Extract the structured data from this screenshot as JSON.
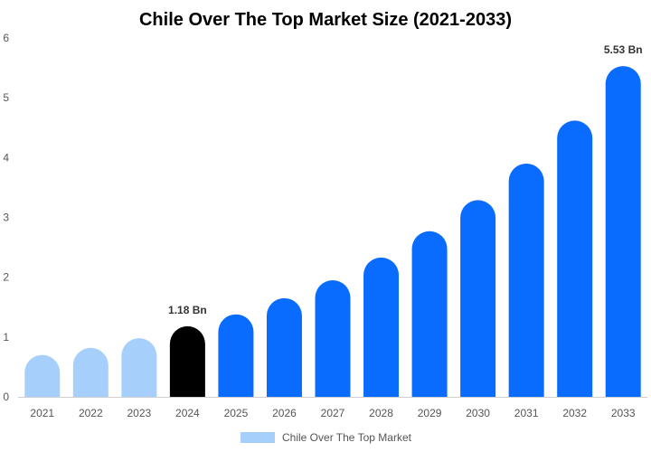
{
  "chart_data": {
    "type": "bar",
    "title": "Chile Over The Top Market Size (2021-2033)",
    "categories": [
      "2021",
      "2022",
      "2023",
      "2024",
      "2025",
      "2026",
      "2027",
      "2028",
      "2029",
      "2030",
      "2031",
      "2032",
      "2033"
    ],
    "series": [
      {
        "name": "Chile Over The Top Market",
        "values": [
          0.7,
          0.82,
          0.98,
          1.18,
          1.38,
          1.65,
          1.95,
          2.33,
          2.77,
          3.29,
          3.9,
          4.62,
          5.53
        ]
      }
    ],
    "data_labels": [
      {
        "category": "2024",
        "text": "1.18 Bn"
      },
      {
        "category": "2033",
        "text": "5.53 Bn"
      }
    ],
    "ylim": [
      0,
      6
    ],
    "yticks": [
      0,
      1,
      2,
      3,
      4,
      5,
      6
    ],
    "grid": false,
    "legend_position": "bottom",
    "colors": {
      "historical": "#a6cffc",
      "base_year": "#000000",
      "forecast": "#0a6cff",
      "legend_swatch": "#a6cffc"
    },
    "bar_color_groups": [
      "historical",
      "historical",
      "historical",
      "base_year",
      "forecast",
      "forecast",
      "forecast",
      "forecast",
      "forecast",
      "forecast",
      "forecast",
      "forecast",
      "forecast"
    ]
  }
}
